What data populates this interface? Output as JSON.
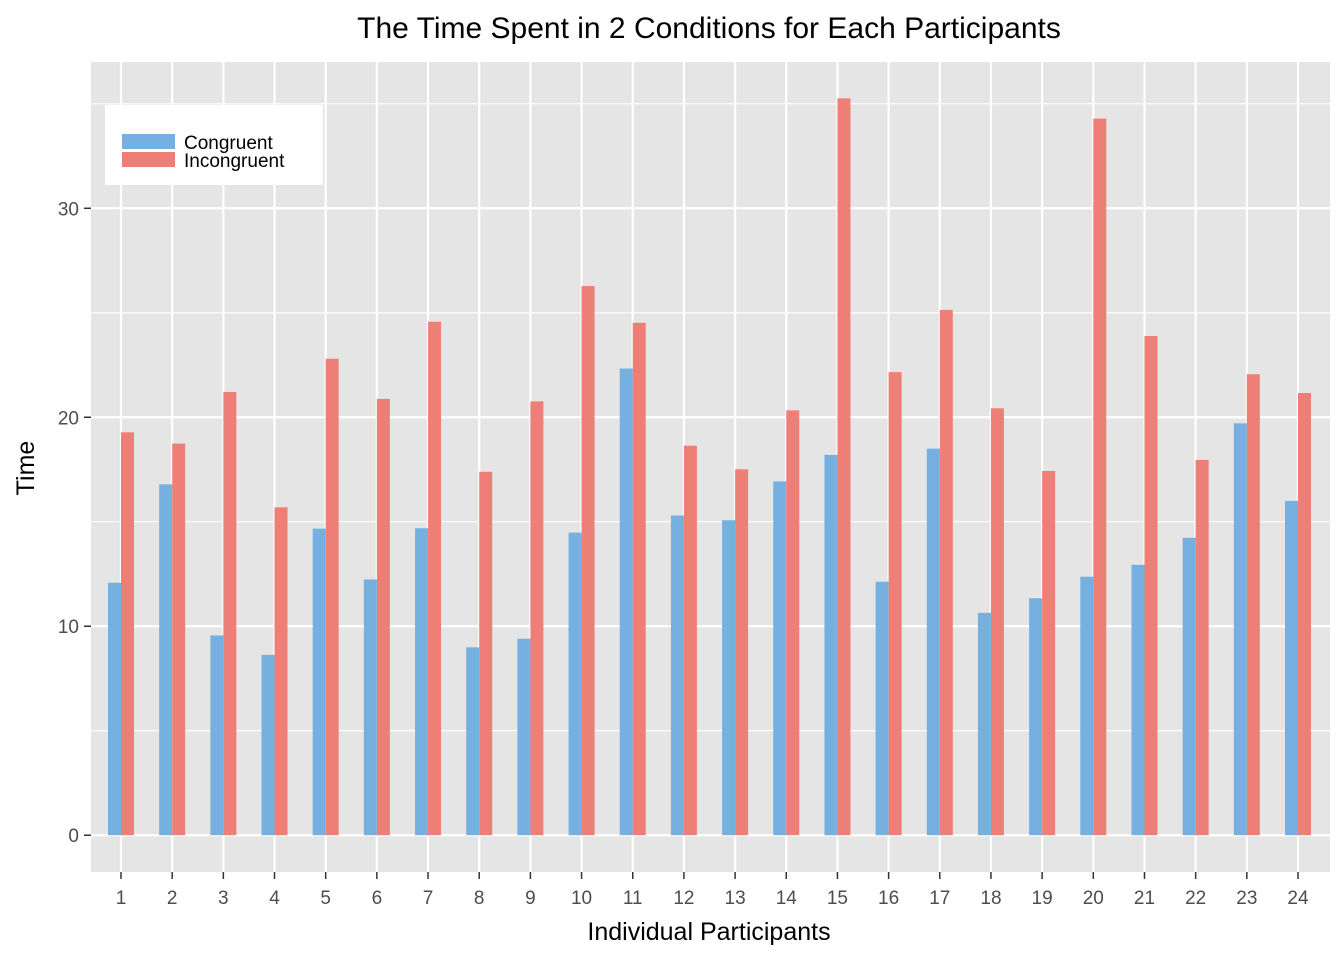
{
  "chart_data": {
    "type": "bar",
    "title": "The Time Spent in 2 Conditions for Each Participants",
    "xlabel": "Individual Participants",
    "ylabel": "Time",
    "categories": [
      "1",
      "2",
      "3",
      "4",
      "5",
      "6",
      "7",
      "8",
      "9",
      "10",
      "11",
      "12",
      "13",
      "14",
      "15",
      "16",
      "17",
      "18",
      "19",
      "20",
      "21",
      "22",
      "23",
      "24"
    ],
    "series": [
      {
        "name": "Congruent",
        "color": "#75b0e0",
        "values": [
          12.08,
          16.79,
          9.56,
          8.63,
          14.67,
          12.24,
          14.69,
          8.99,
          9.4,
          14.48,
          22.33,
          15.3,
          15.07,
          16.93,
          18.2,
          12.13,
          18.5,
          10.64,
          11.34,
          12.37,
          12.94,
          14.23,
          19.71,
          16.0
        ]
      },
      {
        "name": "Incongruent",
        "color": "#ee7f76",
        "values": [
          19.28,
          18.74,
          21.21,
          15.69,
          22.8,
          20.88,
          24.57,
          17.39,
          20.76,
          26.28,
          24.52,
          18.64,
          17.51,
          20.33,
          35.26,
          22.16,
          25.14,
          20.43,
          17.43,
          34.29,
          23.89,
          17.96,
          22.06,
          21.16
        ]
      }
    ],
    "ylim": [
      -1.76,
      37.0
    ],
    "yticks": [
      0,
      10,
      20,
      30
    ],
    "grid": true,
    "legend_position": "top-left",
    "panel_background": "#e5e5e5",
    "grid_color": "#ffffff"
  }
}
